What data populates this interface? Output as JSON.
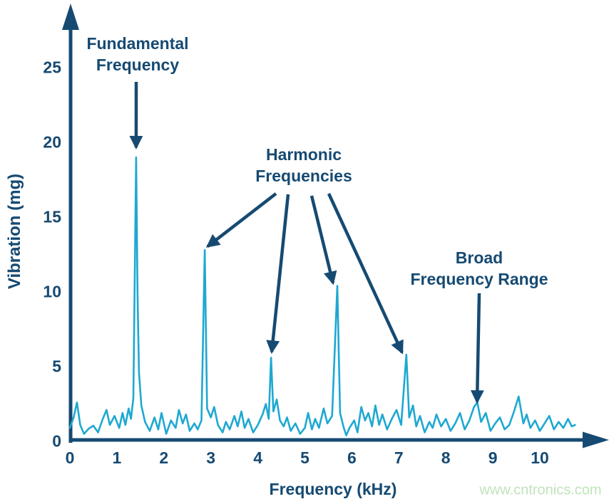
{
  "colors": {
    "axis": "#164a72",
    "text": "#164a72",
    "trace": "#1ea8d1",
    "watermark": "#c0e4bb"
  },
  "watermark": "www.cntronics.com",
  "annotations": {
    "fundamental": {
      "line1": "Fundamental",
      "line2": "Frequency"
    },
    "harmonic": {
      "line1": "Harmonic",
      "line2": "Frequencies"
    },
    "broad": {
      "line1": "Broad",
      "line2": "Frequency Range"
    }
  },
  "chart_data": {
    "type": "line",
    "title": "",
    "xlabel": "Frequency (kHz)",
    "ylabel": "Vibration (mg)",
    "xlim": [
      0,
      11
    ],
    "ylim": [
      0,
      27
    ],
    "x_ticks": [
      0,
      1,
      2,
      3,
      4,
      5,
      6,
      7,
      8,
      9,
      10
    ],
    "y_ticks": [
      0,
      5,
      10,
      15,
      20,
      25
    ],
    "grid": false,
    "legend": "none",
    "peaks": [
      {
        "name": "fundamental-frequency",
        "khz": 1.41,
        "mg": 19.0
      },
      {
        "name": "harmonic-1",
        "khz": 2.87,
        "mg": 12.8
      },
      {
        "name": "harmonic-2",
        "khz": 4.28,
        "mg": 5.6
      },
      {
        "name": "harmonic-3",
        "khz": 5.69,
        "mg": 10.4
      },
      {
        "name": "harmonic-4",
        "khz": 7.16,
        "mg": 5.8
      }
    ],
    "broad_range_pointer": {
      "khz": 8.65,
      "mg": 2.6
    },
    "points": [
      [
        0,
        0.9
      ],
      [
        0.08,
        1.6
      ],
      [
        0.15,
        2.6
      ],
      [
        0.22,
        1.1
      ],
      [
        0.3,
        0.5
      ],
      [
        0.4,
        0.85
      ],
      [
        0.5,
        1.05
      ],
      [
        0.6,
        0.6
      ],
      [
        0.7,
        1.5
      ],
      [
        0.78,
        2.1
      ],
      [
        0.85,
        1.1
      ],
      [
        0.95,
        1.7
      ],
      [
        1.05,
        0.9
      ],
      [
        1.12,
        1.9
      ],
      [
        1.18,
        1.1
      ],
      [
        1.25,
        2.2
      ],
      [
        1.3,
        1.5
      ],
      [
        1.35,
        2.9
      ],
      [
        1.41,
        19
      ],
      [
        1.44,
        9.7
      ],
      [
        1.47,
        4.6
      ],
      [
        1.52,
        2.4
      ],
      [
        1.6,
        1.3
      ],
      [
        1.7,
        0.7
      ],
      [
        1.8,
        1.6
      ],
      [
        1.88,
        0.8
      ],
      [
        1.95,
        1.9
      ],
      [
        2.05,
        0.5
      ],
      [
        2.15,
        1.4
      ],
      [
        2.25,
        0.9
      ],
      [
        2.32,
        2.1
      ],
      [
        2.4,
        1.2
      ],
      [
        2.47,
        1.8
      ],
      [
        2.55,
        0.7
      ],
      [
        2.65,
        1.2
      ],
      [
        2.72,
        0.8
      ],
      [
        2.8,
        1.4
      ],
      [
        2.87,
        12.8
      ],
      [
        2.92,
        2.2
      ],
      [
        3,
        1.6
      ],
      [
        3.07,
        2.3
      ],
      [
        3.15,
        1.1
      ],
      [
        3.25,
        0.6
      ],
      [
        3.32,
        1.3
      ],
      [
        3.4,
        0.8
      ],
      [
        3.5,
        1.7
      ],
      [
        3.57,
        1
      ],
      [
        3.65,
        2
      ],
      [
        3.72,
        0.9
      ],
      [
        3.8,
        1.5
      ],
      [
        3.9,
        0.6
      ],
      [
        4,
        1.1
      ],
      [
        4.1,
        1.8
      ],
      [
        4.17,
        2.5
      ],
      [
        4.23,
        1.5
      ],
      [
        4.28,
        5.6
      ],
      [
        4.33,
        2
      ],
      [
        4.4,
        2.8
      ],
      [
        4.47,
        1.4
      ],
      [
        4.55,
        1
      ],
      [
        4.62,
        1.6
      ],
      [
        4.7,
        0.7
      ],
      [
        4.8,
        1.2
      ],
      [
        4.9,
        0.5
      ],
      [
        5,
        0.9
      ],
      [
        5.07,
        1.9
      ],
      [
        5.15,
        0.8
      ],
      [
        5.22,
        1.5
      ],
      [
        5.3,
        0.9
      ],
      [
        5.4,
        2.2
      ],
      [
        5.48,
        1.2
      ],
      [
        5.58,
        1.7
      ],
      [
        5.69,
        10.4
      ],
      [
        5.75,
        1.9
      ],
      [
        5.82,
        1
      ],
      [
        5.88,
        0.4
      ],
      [
        5.95,
        0.9
      ],
      [
        6.05,
        1.4
      ],
      [
        6.12,
        0.6
      ],
      [
        6.2,
        2.3
      ],
      [
        6.28,
        1.4
      ],
      [
        6.35,
        1.9
      ],
      [
        6.43,
        1
      ],
      [
        6.5,
        2.4
      ],
      [
        6.58,
        1.1
      ],
      [
        6.65,
        1.8
      ],
      [
        6.75,
        0.8
      ],
      [
        6.85,
        1.5
      ],
      [
        6.95,
        2.1
      ],
      [
        7.05,
        1.1
      ],
      [
        7.16,
        5.8
      ],
      [
        7.22,
        1.6
      ],
      [
        7.3,
        2.4
      ],
      [
        7.37,
        1
      ],
      [
        7.45,
        1.7
      ],
      [
        7.55,
        0.6
      ],
      [
        7.65,
        1.3
      ],
      [
        7.72,
        0.9
      ],
      [
        7.8,
        1.8
      ],
      [
        7.9,
        1
      ],
      [
        8,
        1.5
      ],
      [
        8.1,
        0.7
      ],
      [
        8.2,
        1.2
      ],
      [
        8.3,
        1.9
      ],
      [
        8.4,
        0.8
      ],
      [
        8.5,
        1.4
      ],
      [
        8.6,
        2.3
      ],
      [
        8.67,
        2.6
      ],
      [
        8.75,
        1.3
      ],
      [
        8.85,
        1.9
      ],
      [
        8.95,
        0.7
      ],
      [
        9.05,
        1.2
      ],
      [
        9.15,
        1.6
      ],
      [
        9.25,
        0.8
      ],
      [
        9.35,
        1.1
      ],
      [
        9.45,
        2
      ],
      [
        9.55,
        3
      ],
      [
        9.65,
        1.2
      ],
      [
        9.72,
        1.8
      ],
      [
        9.8,
        0.9
      ],
      [
        9.9,
        1.4
      ],
      [
        10,
        0.7
      ],
      [
        10.1,
        1.2
      ],
      [
        10.2,
        1.7
      ],
      [
        10.3,
        0.8
      ],
      [
        10.4,
        1.3
      ],
      [
        10.5,
        0.9
      ],
      [
        10.6,
        1.5
      ],
      [
        10.68,
        1
      ],
      [
        10.75,
        1.1
      ]
    ]
  }
}
